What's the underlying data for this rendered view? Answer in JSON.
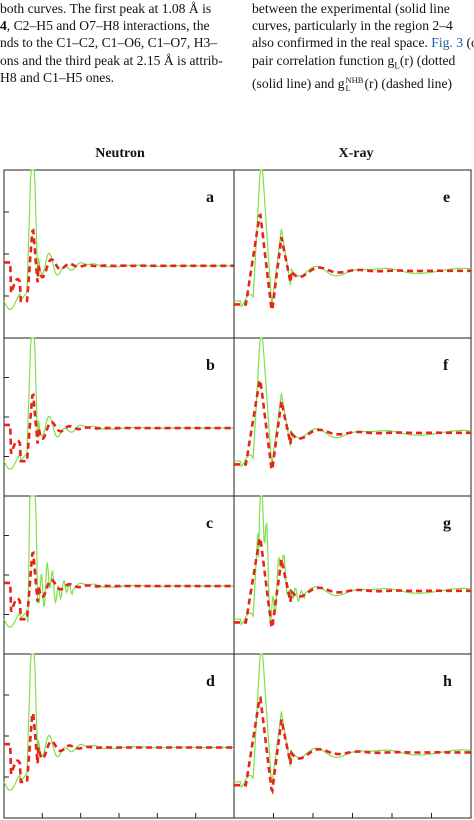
{
  "article_text": {
    "left_lines": [
      "both curves. The first peak at 1.08 Å is",
      "4, C2–H5 and O7–H8 interactions, the",
      "nds to the C1–C2, C1–O6, C1–O7, H3–",
      "ons and the third peak at 2.15 Å is attrib-",
      "H8 and C1–H5 ones."
    ],
    "right_line1": "between the experimental (solid line",
    "right_line2": "curves, particularly in the region 2–4",
    "right_line3_prefix": "also confirmed in the real space.",
    "right_line3_link": "Fig. 3",
    "right_line3_suffix": "(c",
    "right_line4": "pair correlation function g",
    "right_line4_sub": "L",
    "right_line4_rest": "(r) (dotted",
    "right_line5_prefix": "(solid line) and g",
    "right_line5_sup": "NHB",
    "right_line5_sub": "L",
    "right_line5_rest": "(r) (dashed line)"
  },
  "figure": {
    "column_titles": [
      "Neutron",
      "X-ray"
    ],
    "panel_letters_left": [
      "a",
      "b",
      "c",
      "d"
    ],
    "panel_letters_right": [
      "e",
      "f",
      "g",
      "h"
    ],
    "colors": {
      "experimental": "#7fe04a",
      "model": "#e8231a",
      "frame": "#222222"
    },
    "series": [
      {
        "style": "solid",
        "color_key": "experimental"
      },
      {
        "style": "dashed",
        "color_key": "model"
      }
    ]
  }
}
